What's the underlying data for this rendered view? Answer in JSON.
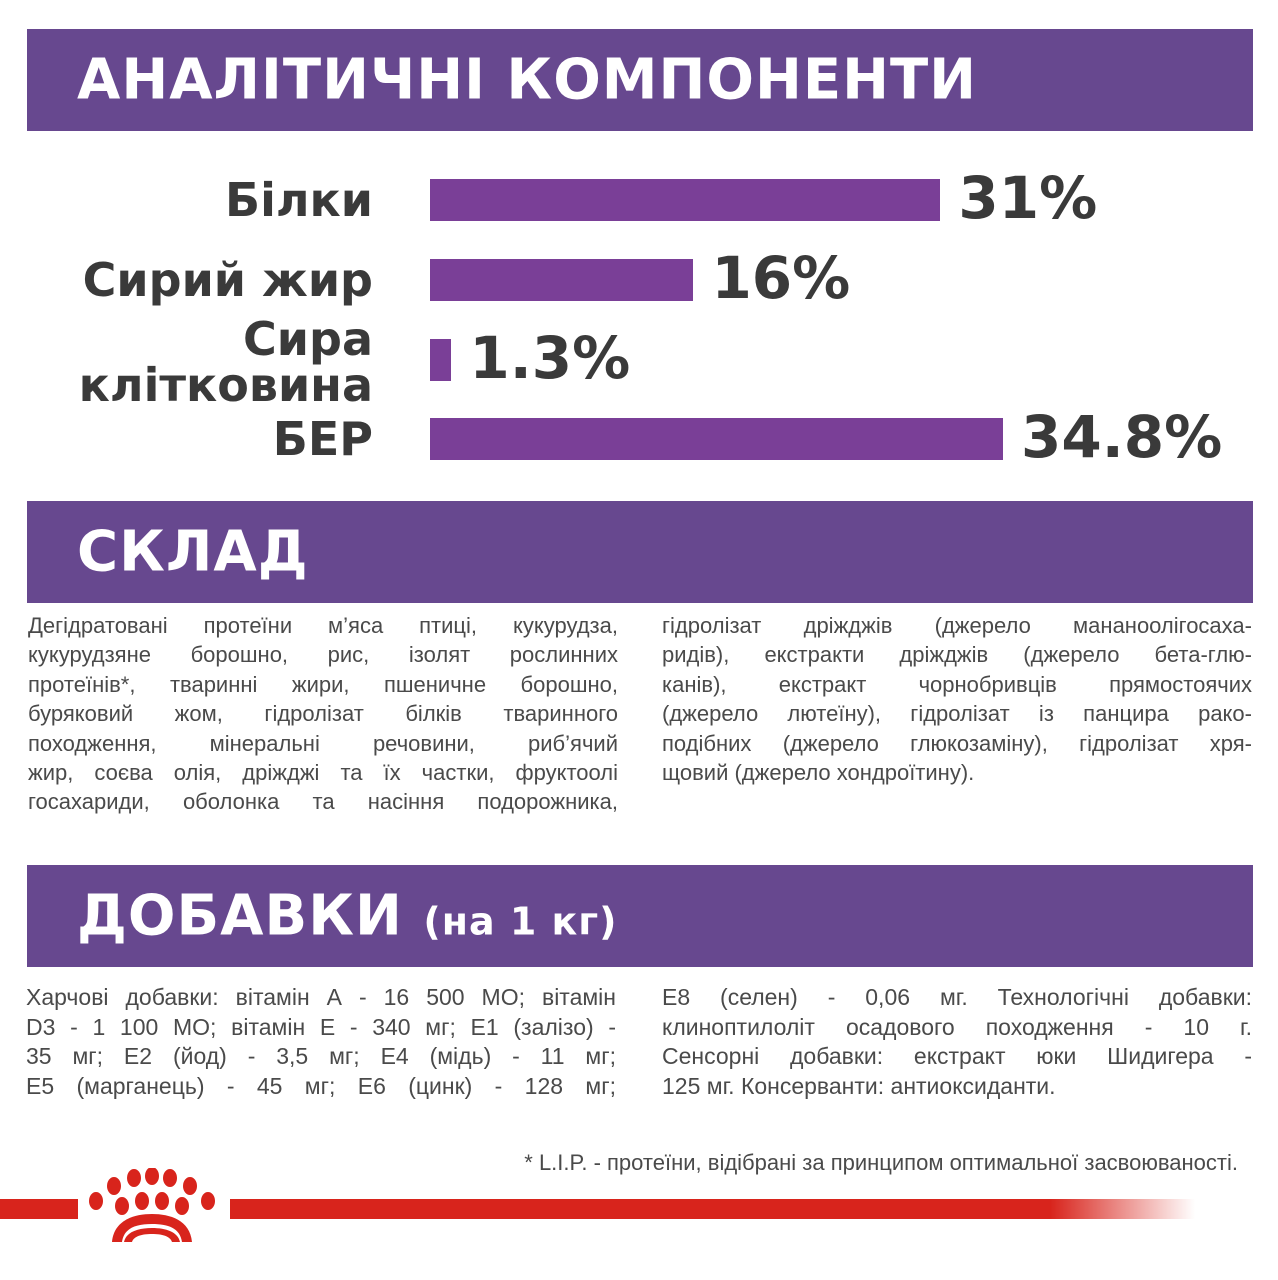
{
  "sections": {
    "analytic_title": "АНАЛІТИЧНІ КОМПОНЕНТИ",
    "composition_title": "СКЛАД",
    "additives_title": "ДОБАВКИ",
    "additives_unit": "(на 1 кг)"
  },
  "chart_data": {
    "type": "bar",
    "orientation": "horizontal",
    "categories": [
      "Білки",
      "Сирий жир",
      "Сира клітковина",
      "БЕР"
    ],
    "category_lines": [
      [
        "Білки"
      ],
      [
        "Сирий жир"
      ],
      [
        "Сира",
        "клітковина"
      ],
      [
        "БЕР"
      ]
    ],
    "values": [
      31,
      16,
      1.3,
      34.8
    ],
    "value_labels": [
      "31%",
      "16%",
      "1.3%",
      "34.8%"
    ],
    "unit": "%",
    "bar_color": "#7a3f97"
  },
  "composition": {
    "left_lines": [
      "Дегідратовані протеїни м’яса птиці, кукурудза,",
      "кукурудзяне борошно, рис, ізолят рослинних",
      "протеїнів*, тваринні жири, пшеничне борошно,",
      "буряковий жом, гідролізат білків тваринного",
      "походження, мінеральні речовини, риб’ячий",
      "жир, соєва олія, дріжджі та їх частки, фруктоолі",
      "госахариди, оболонка та насіння подорожника,"
    ],
    "right_lines": [
      "гідролізат дріжджів (джерело мананоолігосаха-",
      "ридів), екстракти дріжджів (джерело бета-глю-",
      "канів), екстракт чорнобривців прямостоячих",
      "(джерело лютеїну), гідролізат із панцира рако-",
      "подібних (джерело глюкозаміну), гідролізат хря-",
      "щовий (джерело хондроїтину)."
    ]
  },
  "additives": {
    "left_lines": [
      "Харчові добавки: вітамін А - 16 500 МО; вітамін",
      "D3 - 1 100 МО; вітамін Е - 340 мг; Е1 (залізо) -",
      "35 мг; Е2 (йод) - 3,5 мг; Е4 (мідь) - 11 мг;",
      "Е5 (марганець) - 45 мг; Е6 (цинк) - 128 мг;"
    ],
    "right_lines": [
      "Е8 (селен) - 0,06 мг. Технологічні добавки:",
      "клиноптилоліт осадового походження - 10 г.",
      "Сенсорні добавки: екстракт юки Шидигера -",
      "125 мг. Консерванти: антиоксиданти."
    ]
  },
  "footnote": "* L.I.P. - протеїни, відібрані за принципом оптимальної засвоюваності.",
  "colors": {
    "header_band": "#67488f",
    "brand_red": "#d8241c"
  },
  "logo": {
    "icon": "royal-canin-crown-icon"
  }
}
